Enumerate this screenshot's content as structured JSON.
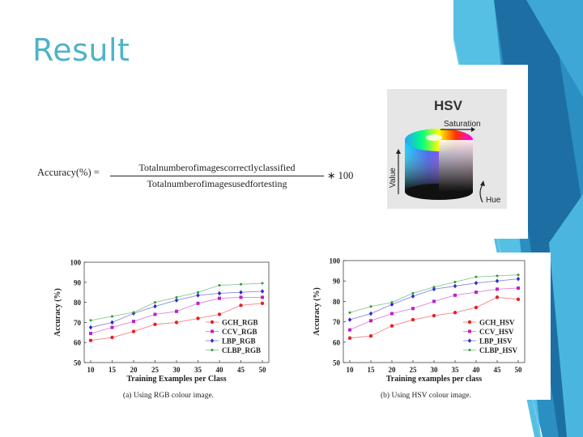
{
  "slide": {
    "title": "Result",
    "accent_color": "#4fb3c9"
  },
  "formula": {
    "lhs": "Accuracy(%) =",
    "numerator": "Totalnumberofimagescorrectlyclassified",
    "denominator": "Totalnumberofimagesusedfortesting",
    "rhs": "∗ 100"
  },
  "hsv_image": {
    "title": "HSV",
    "saturation_label": "Saturation",
    "value_label": "Value",
    "hue_label": "Hue"
  },
  "chart_data": [
    {
      "type": "line",
      "caption": "(a) Using RGB colour image.",
      "xlabel": "Training Examples per Class",
      "ylabel": "Accuracy (%)",
      "x": [
        10,
        15,
        20,
        25,
        30,
        35,
        40,
        45,
        50
      ],
      "xticks": [
        "10",
        "15",
        "20",
        "25",
        "30",
        "35",
        "40",
        "45",
        "50"
      ],
      "yticks": [
        "50",
        "60",
        "70",
        "80",
        "90",
        "100"
      ],
      "ylim": [
        50,
        100
      ],
      "grid": false,
      "legend_position": "bottom-right",
      "series": [
        {
          "name": "GCH_RGB",
          "color": "#e8202a",
          "marker": "circle",
          "values": [
            61,
            62.5,
            65.5,
            69,
            70,
            72,
            74,
            78.5,
            79.5
          ]
        },
        {
          "name": "CCV_RGB",
          "color": "#c020c8",
          "marker": "square",
          "values": [
            64.5,
            67.5,
            70.5,
            74,
            75.5,
            79.5,
            82,
            82.5,
            82.5
          ]
        },
        {
          "name": "LBP_RGB",
          "color": "#2a2ad0",
          "marker": "diamond",
          "values": [
            67.5,
            70,
            74.5,
            78,
            81,
            83.5,
            84.5,
            85,
            85.5
          ]
        },
        {
          "name": "CLBP_RGB",
          "color": "#2a9a3a",
          "marker": "dot",
          "values": [
            71,
            73,
            75,
            80,
            82.5,
            85,
            88.5,
            89,
            89.5
          ]
        }
      ]
    },
    {
      "type": "line",
      "caption": "(b) Using HSV colour image.",
      "xlabel": "Training examples per class",
      "ylabel": "Accuracy (%)",
      "x": [
        10,
        15,
        20,
        25,
        30,
        35,
        40,
        45,
        50
      ],
      "xticks": [
        "10",
        "15",
        "20",
        "25",
        "30",
        "35",
        "40",
        "45",
        "50"
      ],
      "yticks": [
        "50",
        "60",
        "70",
        "80",
        "90",
        "100"
      ],
      "ylim": [
        50,
        100
      ],
      "grid": false,
      "legend_position": "bottom-right",
      "series": [
        {
          "name": "GCH_HSV",
          "color": "#e8202a",
          "marker": "circle",
          "values": [
            62,
            63,
            68,
            71,
            73,
            74.5,
            77,
            82,
            81
          ]
        },
        {
          "name": "CCV_HSV",
          "color": "#c020c8",
          "marker": "square",
          "values": [
            66,
            70.5,
            74,
            76.5,
            80,
            83,
            84.5,
            86,
            86.5
          ]
        },
        {
          "name": "LBP_HSV",
          "color": "#2a2ad0",
          "marker": "diamond",
          "values": [
            71,
            74,
            78.5,
            82.5,
            86,
            87.5,
            89,
            90,
            91
          ]
        },
        {
          "name": "CLBP_HSV",
          "color": "#2a9a3a",
          "marker": "dot",
          "values": [
            74.5,
            77.5,
            79.5,
            84,
            87,
            89.5,
            92,
            92.5,
            93
          ]
        }
      ]
    }
  ]
}
